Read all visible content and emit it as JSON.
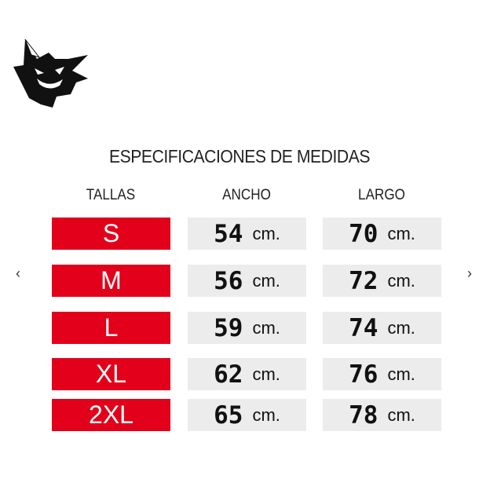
{
  "title": "ESPECIFICACIONES DE MEDIDAS",
  "headers": {
    "tallas": "TALLAS",
    "ancho": "ANCHO",
    "largo": "LARGO"
  },
  "rows": [
    {
      "talla": "S",
      "ancho": "54",
      "largo": "70"
    },
    {
      "talla": "M",
      "ancho": "56",
      "largo": "72"
    },
    {
      "talla": "L",
      "ancho": "59",
      "largo": "74"
    },
    {
      "talla": "XL",
      "ancho": "62",
      "largo": "76"
    },
    {
      "talla": "2XL",
      "ancho": "65",
      "largo": "78"
    }
  ],
  "unit": "cm.",
  "nav": {
    "prev": "‹",
    "next": "›"
  },
  "colors": {
    "accent": "#e2001a",
    "cell": "#ececec"
  }
}
